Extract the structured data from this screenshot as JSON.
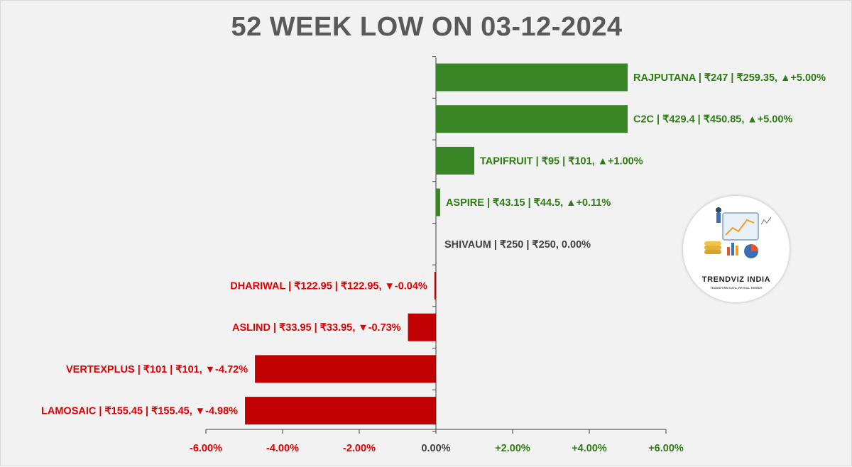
{
  "chart_data": {
    "type": "bar",
    "orientation": "horizontal",
    "title": "52 WEEK LOW ON 03-12-2024",
    "xlim": [
      -6,
      6
    ],
    "x_ticks": [
      -6,
      -4,
      -2,
      0,
      2,
      4,
      6
    ],
    "x_tick_labels": [
      "-6.00%",
      "-4.00%",
      "-2.00%",
      "0.00%",
      "+2.00%",
      "+4.00%",
      "+6.00%"
    ],
    "grid": false,
    "categories": [
      "RAJPUTANA",
      "C2C",
      "TAPIFRUIT",
      "ASPIRE",
      "SHIVAUM",
      "DHARIWAL",
      "ASLIND",
      "VERTEXPLUS",
      "LAMOSAIC"
    ],
    "values": [
      5.0,
      5.0,
      1.0,
      0.11,
      0.0,
      -0.04,
      -0.73,
      -4.72,
      -4.98
    ],
    "data_labels": [
      "RAJPUTANA |  ₹247 |  ₹259.35, ▲+5.00%",
      "C2C |  ₹429.4 |  ₹450.85, ▲+5.00%",
      "TAPIFRUIT |  ₹95 |  ₹101, ▲+1.00%",
      "ASPIRE |  ₹43.15 |  ₹44.5, ▲+0.11%",
      "SHIVAUM |  ₹250 |  ₹250, 0.00%",
      "DHARIWAL |  ₹122.95 |  ₹122.95, ▼-0.04%",
      "ASLIND |  ₹33.95 |  ₹33.95, ▼-0.73%",
      "VERTEXPLUS |  ₹101 |  ₹101, ▼-4.72%",
      "LAMOSAIC |  ₹155.45 |  ₹155.45, ▼-4.98%"
    ],
    "colors": {
      "positive_bar": "#3a8526",
      "negative_bar": "#c00000",
      "positive_text": "#2e7d12",
      "negative_text": "#e00000",
      "neutral_text": "#404040",
      "axis": "#404040",
      "title": "#595959"
    }
  },
  "logo": {
    "name": "TRENDVIZ INDIA",
    "tagline": "TRANSFORM DATA, REVEAL TRENDS"
  }
}
